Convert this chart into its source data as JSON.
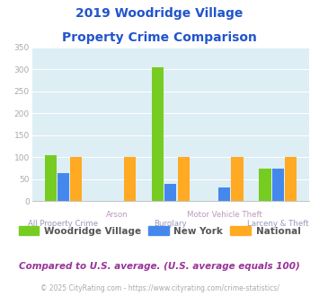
{
  "title_line1": "2019 Woodridge Village",
  "title_line2": "Property Crime Comparison",
  "categories": [
    "All Property Crime",
    "Arson",
    "Burglary",
    "Motor Vehicle Theft",
    "Larceny & Theft"
  ],
  "woodridge": [
    105,
    0,
    305,
    0,
    75
  ],
  "newyork": [
    65,
    0,
    40,
    32,
    75
  ],
  "national": [
    100,
    100,
    100,
    100,
    100
  ],
  "color_woodridge": "#77cc22",
  "color_newyork": "#4488ee",
  "color_national": "#ffaa22",
  "ylim": [
    0,
    350
  ],
  "yticks": [
    0,
    50,
    100,
    150,
    200,
    250,
    300,
    350
  ],
  "plot_bg": "#ddeef4",
  "title_color": "#2255cc",
  "xlabel_color_odd": "#bb99bb",
  "xlabel_color_even": "#9999bb",
  "legend_label_woodridge": "Woodridge Village",
  "legend_label_newyork": "New York",
  "legend_label_national": "National",
  "legend_text_color": "#555555",
  "footnote1": "Compared to U.S. average. (U.S. average equals 100)",
  "footnote2": "© 2025 CityRating.com - https://www.cityrating.com/crime-statistics/",
  "footnote1_color": "#993399",
  "footnote2_color": "#aaaaaa",
  "grid_color": "#ffffff",
  "ytick_color": "#aaaaaa",
  "bar_width": 0.22
}
